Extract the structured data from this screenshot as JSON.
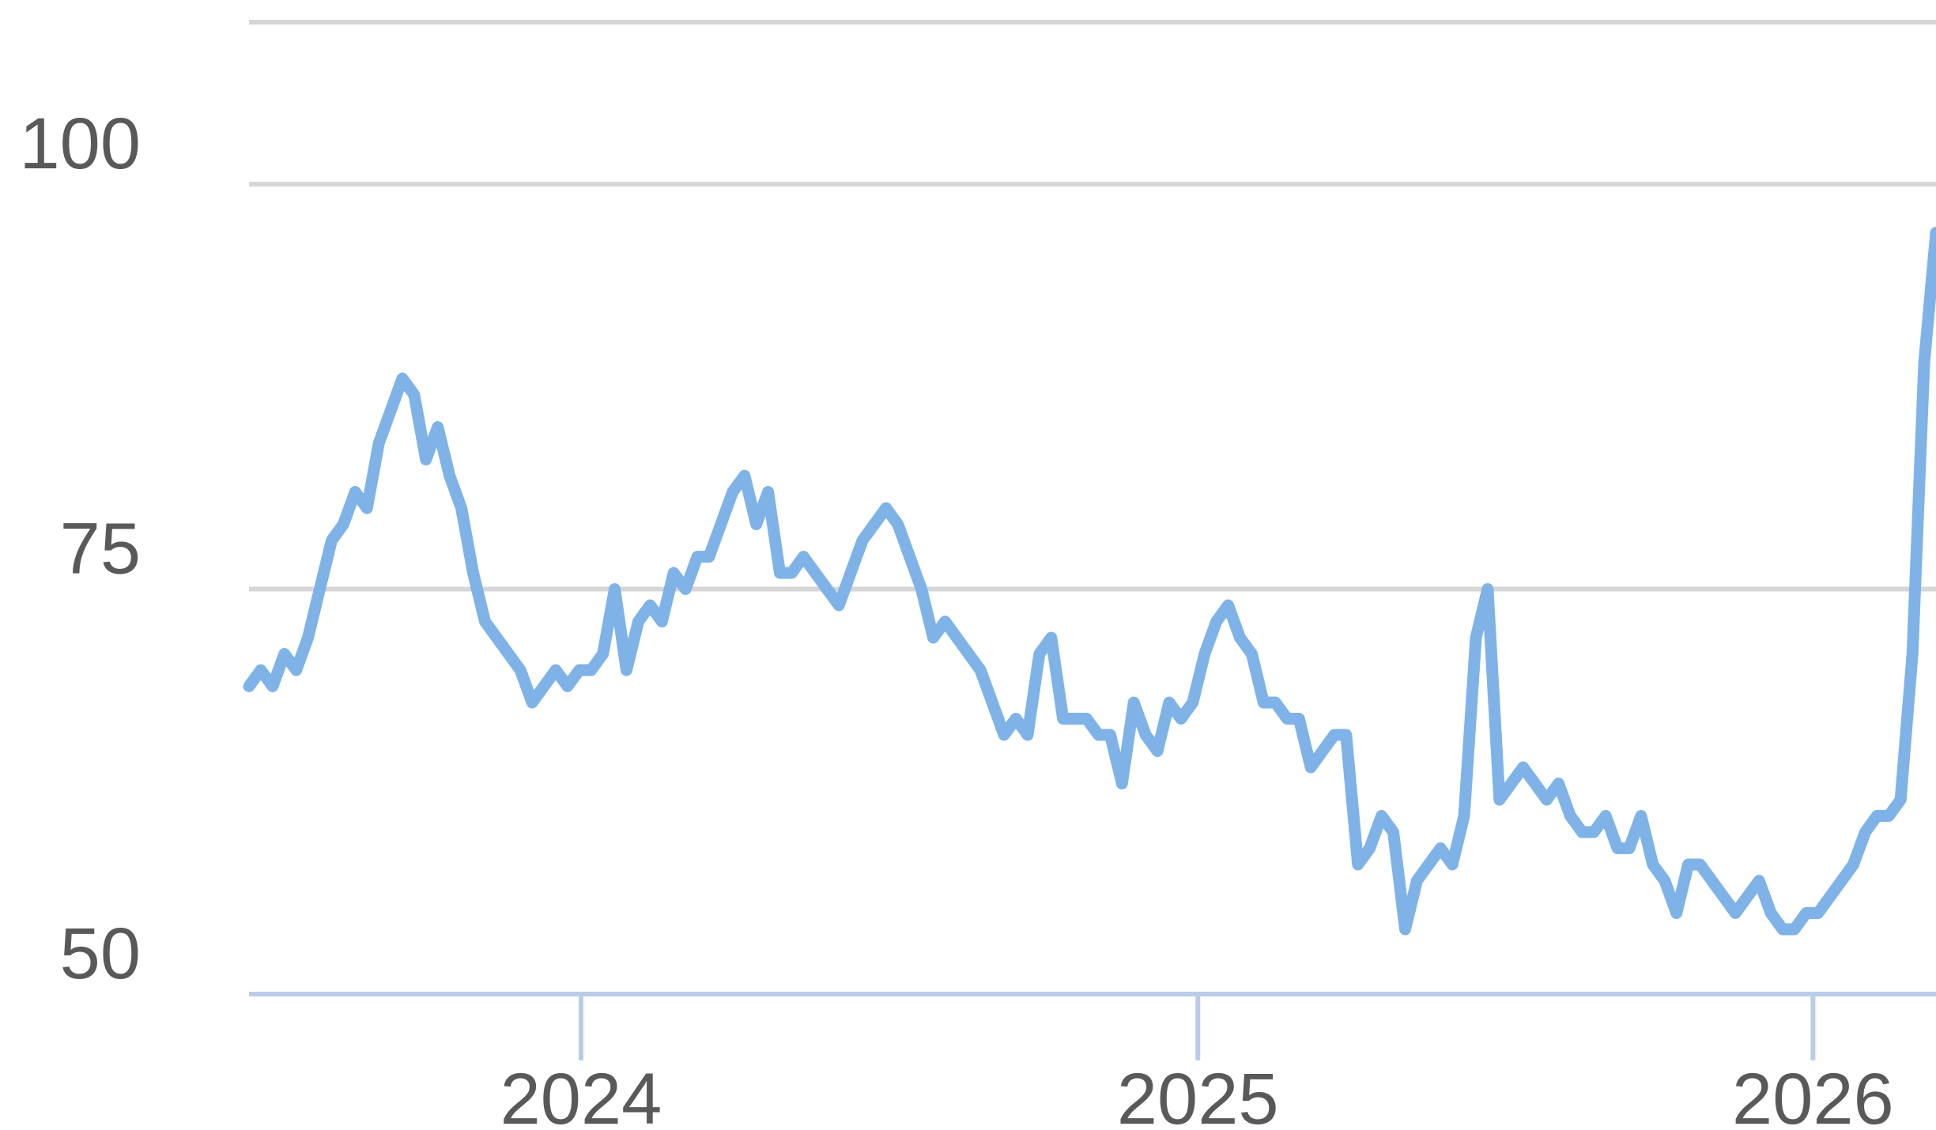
{
  "chart_data": {
    "type": "line",
    "title": "",
    "xlabel": "",
    "ylabel": "",
    "xlim": [
      "2023-06-18",
      "2026-03-15"
    ],
    "ylim": [
      50,
      110
    ],
    "y_ticks": [
      {
        "value": 50,
        "label": "50"
      },
      {
        "value": 75,
        "label": "75"
      },
      {
        "value": 100,
        "label": "100"
      }
    ],
    "x_ticks": [
      {
        "value": "2024-01-01",
        "label": "2024"
      },
      {
        "value": "2025-01-01",
        "label": "2025"
      },
      {
        "value": "2026-01-01",
        "label": "2026"
      }
    ],
    "grid": true,
    "legend": "none",
    "colors": {
      "line": "#7fb3e8",
      "grid": "#d6d6d6",
      "axis": "#b9cde8",
      "text": "#595959"
    },
    "series": [
      {
        "points": [
          [
            "2023-06-18",
            69
          ],
          [
            "2023-06-25",
            70
          ],
          [
            "2023-07-02",
            69
          ],
          [
            "2023-07-09",
            71
          ],
          [
            "2023-07-16",
            70
          ],
          [
            "2023-07-23",
            72
          ],
          [
            "2023-07-30",
            75
          ],
          [
            "2023-08-06",
            78
          ],
          [
            "2023-08-13",
            79
          ],
          [
            "2023-08-20",
            81
          ],
          [
            "2023-08-27",
            80
          ],
          [
            "2023-09-03",
            84
          ],
          [
            "2023-09-10",
            86
          ],
          [
            "2023-09-17",
            88
          ],
          [
            "2023-09-24",
            87
          ],
          [
            "2023-10-01",
            83
          ],
          [
            "2023-10-08",
            85
          ],
          [
            "2023-10-15",
            82
          ],
          [
            "2023-10-22",
            80
          ],
          [
            "2023-10-29",
            76
          ],
          [
            "2023-11-05",
            73
          ],
          [
            "2023-11-12",
            72
          ],
          [
            "2023-11-19",
            71
          ],
          [
            "2023-11-26",
            70
          ],
          [
            "2023-12-03",
            68
          ],
          [
            "2023-12-10",
            69
          ],
          [
            "2023-12-17",
            70
          ],
          [
            "2023-12-24",
            69
          ],
          [
            "2023-12-31",
            70
          ],
          [
            "2024-01-07",
            70
          ],
          [
            "2024-01-14",
            71
          ],
          [
            "2024-01-21",
            75
          ],
          [
            "2024-01-28",
            70
          ],
          [
            "2024-02-04",
            73
          ],
          [
            "2024-02-11",
            74
          ],
          [
            "2024-02-18",
            73
          ],
          [
            "2024-02-25",
            76
          ],
          [
            "2024-03-03",
            75
          ],
          [
            "2024-03-10",
            77
          ],
          [
            "2024-03-17",
            77
          ],
          [
            "2024-03-24",
            79
          ],
          [
            "2024-03-31",
            81
          ],
          [
            "2024-04-07",
            82
          ],
          [
            "2024-04-14",
            79
          ],
          [
            "2024-04-21",
            81
          ],
          [
            "2024-04-28",
            76
          ],
          [
            "2024-05-05",
            76
          ],
          [
            "2024-05-12",
            77
          ],
          [
            "2024-05-19",
            76
          ],
          [
            "2024-05-26",
            75
          ],
          [
            "2024-06-02",
            74
          ],
          [
            "2024-06-09",
            76
          ],
          [
            "2024-06-16",
            78
          ],
          [
            "2024-06-23",
            79
          ],
          [
            "2024-06-30",
            80
          ],
          [
            "2024-07-07",
            79
          ],
          [
            "2024-07-14",
            77
          ],
          [
            "2024-07-21",
            75
          ],
          [
            "2024-07-28",
            72
          ],
          [
            "2024-08-04",
            73
          ],
          [
            "2024-08-11",
            72
          ],
          [
            "2024-08-18",
            71
          ],
          [
            "2024-08-25",
            70
          ],
          [
            "2024-09-01",
            68
          ],
          [
            "2024-09-08",
            66
          ],
          [
            "2024-09-15",
            67
          ],
          [
            "2024-09-22",
            66
          ],
          [
            "2024-09-29",
            71
          ],
          [
            "2024-10-06",
            72
          ],
          [
            "2024-10-13",
            67
          ],
          [
            "2024-10-20",
            67
          ],
          [
            "2024-10-27",
            67
          ],
          [
            "2024-11-03",
            66
          ],
          [
            "2024-11-10",
            66
          ],
          [
            "2024-11-17",
            63
          ],
          [
            "2024-11-24",
            68
          ],
          [
            "2024-12-01",
            66
          ],
          [
            "2024-12-08",
            65
          ],
          [
            "2024-12-15",
            68
          ],
          [
            "2024-12-22",
            67
          ],
          [
            "2024-12-29",
            68
          ],
          [
            "2025-01-05",
            71
          ],
          [
            "2025-01-12",
            73
          ],
          [
            "2025-01-19",
            74
          ],
          [
            "2025-01-26",
            72
          ],
          [
            "2025-02-02",
            71
          ],
          [
            "2025-02-09",
            68
          ],
          [
            "2025-02-16",
            68
          ],
          [
            "2025-02-23",
            67
          ],
          [
            "2025-03-02",
            67
          ],
          [
            "2025-03-09",
            64
          ],
          [
            "2025-03-16",
            65
          ],
          [
            "2025-03-23",
            66
          ],
          [
            "2025-03-30",
            66
          ],
          [
            "2025-04-06",
            58
          ],
          [
            "2025-04-13",
            59
          ],
          [
            "2025-04-20",
            61
          ],
          [
            "2025-04-27",
            60
          ],
          [
            "2025-05-04",
            54
          ],
          [
            "2025-05-11",
            57
          ],
          [
            "2025-05-18",
            58
          ],
          [
            "2025-05-25",
            59
          ],
          [
            "2025-06-01",
            58
          ],
          [
            "2025-06-08",
            61
          ],
          [
            "2025-06-15",
            72
          ],
          [
            "2025-06-22",
            75
          ],
          [
            "2025-06-29",
            62
          ],
          [
            "2025-07-06",
            63
          ],
          [
            "2025-07-13",
            64
          ],
          [
            "2025-07-20",
            63
          ],
          [
            "2025-07-27",
            62
          ],
          [
            "2025-08-03",
            63
          ],
          [
            "2025-08-10",
            61
          ],
          [
            "2025-08-17",
            60
          ],
          [
            "2025-08-24",
            60
          ],
          [
            "2025-08-31",
            61
          ],
          [
            "2025-09-07",
            59
          ],
          [
            "2025-09-14",
            59
          ],
          [
            "2025-09-21",
            61
          ],
          [
            "2025-09-28",
            58
          ],
          [
            "2025-10-05",
            57
          ],
          [
            "2025-10-12",
            55
          ],
          [
            "2025-10-19",
            58
          ],
          [
            "2025-10-26",
            58
          ],
          [
            "2025-11-02",
            57
          ],
          [
            "2025-11-09",
            56
          ],
          [
            "2025-11-16",
            55
          ],
          [
            "2025-11-23",
            56
          ],
          [
            "2025-11-30",
            57
          ],
          [
            "2025-12-07",
            55
          ],
          [
            "2025-12-14",
            54
          ],
          [
            "2025-12-21",
            54
          ],
          [
            "2025-12-28",
            55
          ],
          [
            "2026-01-04",
            55
          ],
          [
            "2026-01-11",
            56
          ],
          [
            "2026-01-18",
            57
          ],
          [
            "2026-01-25",
            58
          ],
          [
            "2026-02-01",
            60
          ],
          [
            "2026-02-08",
            61
          ],
          [
            "2026-02-15",
            61
          ],
          [
            "2026-02-22",
            62
          ],
          [
            "2026-03-01",
            71
          ],
          [
            "2026-03-08",
            89
          ],
          [
            "2026-03-15",
            97
          ]
        ]
      }
    ]
  }
}
